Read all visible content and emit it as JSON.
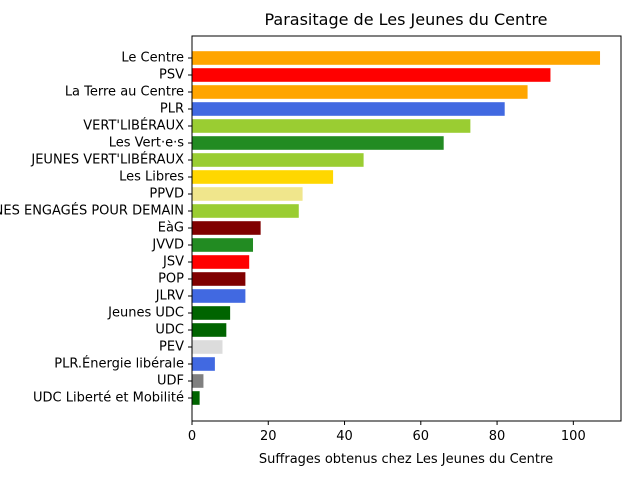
{
  "chart_data": {
    "type": "bar",
    "orientation": "horizontal",
    "title": "Parasitage de Les Jeunes du Centre",
    "xlabel": "Suffrages obtenus chez Les Jeunes du Centre",
    "ylabel": "",
    "xlim": [
      0,
      112.5
    ],
    "xticks": [
      0,
      20,
      40,
      60,
      80,
      100
    ],
    "grid": false,
    "categories": [
      "Le Centre",
      "PSV",
      "La Terre au Centre",
      "PLR",
      "VERT'LIBÉRAUX",
      "Les Vert·e·s",
      "JEUNES VERT'LIBÉRAUX",
      "Les Libres",
      "PPVD",
      "JEUNES ENGAGÉS POUR DEMAIN",
      "EàG",
      "JVVD",
      "JSV",
      "POP",
      "JLRV",
      "Jeunes UDC",
      "UDC",
      "PEV",
      "PLR.Énergie libérale",
      "UDF",
      "UDC Liberté et Mobilité"
    ],
    "values": [
      107,
      94,
      88,
      82,
      73,
      66,
      45,
      37,
      29,
      28,
      18,
      16,
      15,
      14,
      14,
      10,
      9,
      8,
      6,
      3,
      2
    ],
    "colors": [
      "#ffa500",
      "#ff0000",
      "#ffa500",
      "#4169e1",
      "#9acd32",
      "#228b22",
      "#9acd32",
      "#ffd700",
      "#f0e68c",
      "#9acd32",
      "#800000",
      "#228b22",
      "#ff0000",
      "#800000",
      "#4169e1",
      "#006400",
      "#006400",
      "#dcdcdc",
      "#4169e1",
      "#808080",
      "#006400"
    ]
  }
}
